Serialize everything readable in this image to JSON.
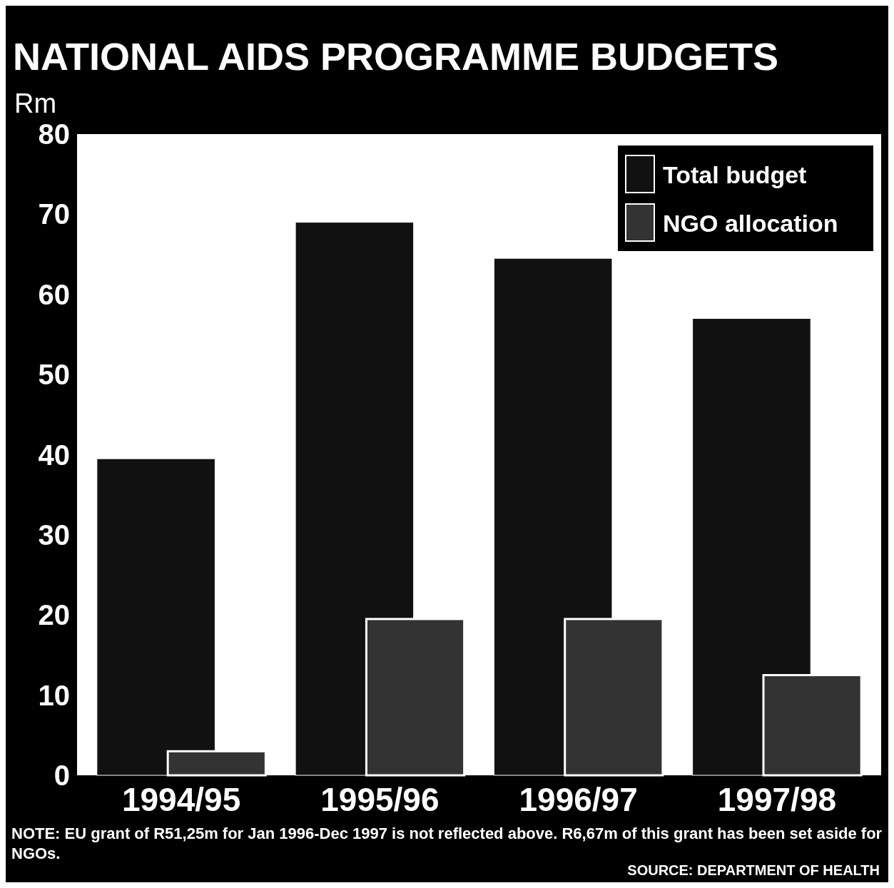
{
  "chart_data": {
    "type": "bar",
    "title": "NATIONAL AIDS PROGRAMME BUDGETS",
    "ylabel": "Rm",
    "categories": [
      "1994/95",
      "1995/96",
      "1996/97",
      "1997/98"
    ],
    "series": [
      {
        "name": "Total budget",
        "color": "#111111",
        "values": [
          39.5,
          69,
          64.5,
          57
        ]
      },
      {
        "name": "NGO allocation",
        "color": "#333333",
        "values": [
          3,
          19.5,
          19.5,
          12.5
        ]
      }
    ],
    "ylim": [
      0,
      80
    ],
    "yticks": [
      0,
      10,
      20,
      30,
      40,
      50,
      60,
      70,
      80
    ],
    "grid": false,
    "legend": "top right",
    "annotations": [
      "NOTE: EU grant of R51,25m for Jan 1996-Dec 1997 is not reflected above. R6,67m of this grant has been set aside for NGOs.",
      "SOURCE: DEPARTMENT OF HEALTH"
    ]
  }
}
